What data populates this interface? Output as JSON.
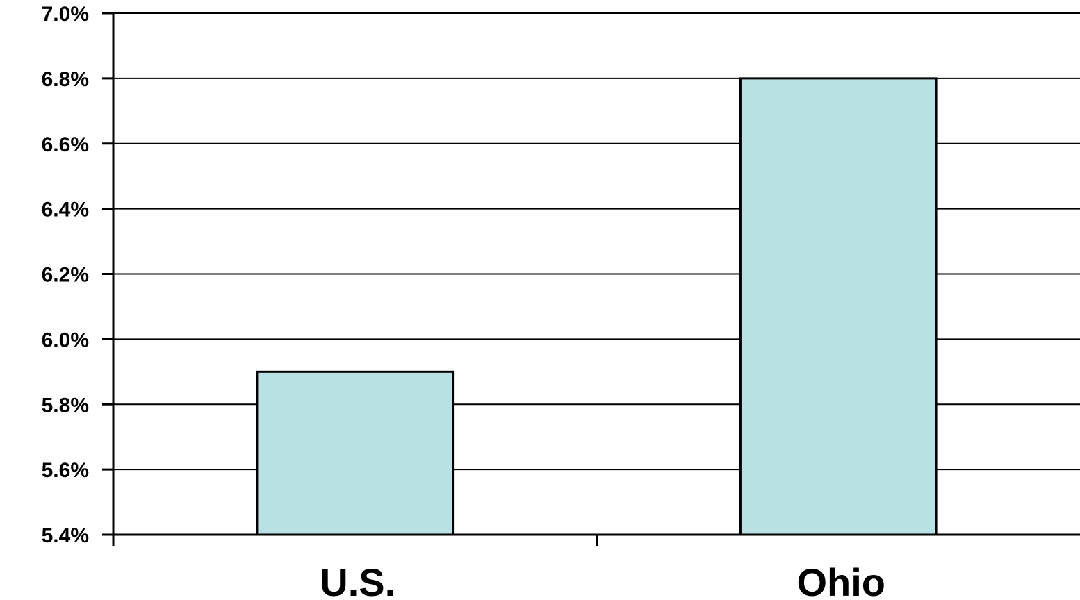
{
  "chart_data": {
    "type": "bar",
    "title": "",
    "xlabel": "",
    "ylabel": "",
    "categories": [
      "U.S.",
      "Ohio"
    ],
    "values": [
      5.9,
      6.8
    ],
    "value_unit": "%",
    "ylim": [
      5.4,
      7.0
    ],
    "yticks": [
      5.4,
      5.6,
      5.8,
      6.0,
      6.2,
      6.4,
      6.6,
      6.8,
      7.0
    ],
    "ytick_labels": [
      "5.4%",
      "5.6%",
      "5.8%",
      "6.0%",
      "6.2%",
      "6.4%",
      "6.6%",
      "6.8%",
      "7.0%"
    ],
    "grid": true,
    "legend": "none",
    "bar_color": "#b9e0e3",
    "bar_edge_color": "#000000"
  }
}
